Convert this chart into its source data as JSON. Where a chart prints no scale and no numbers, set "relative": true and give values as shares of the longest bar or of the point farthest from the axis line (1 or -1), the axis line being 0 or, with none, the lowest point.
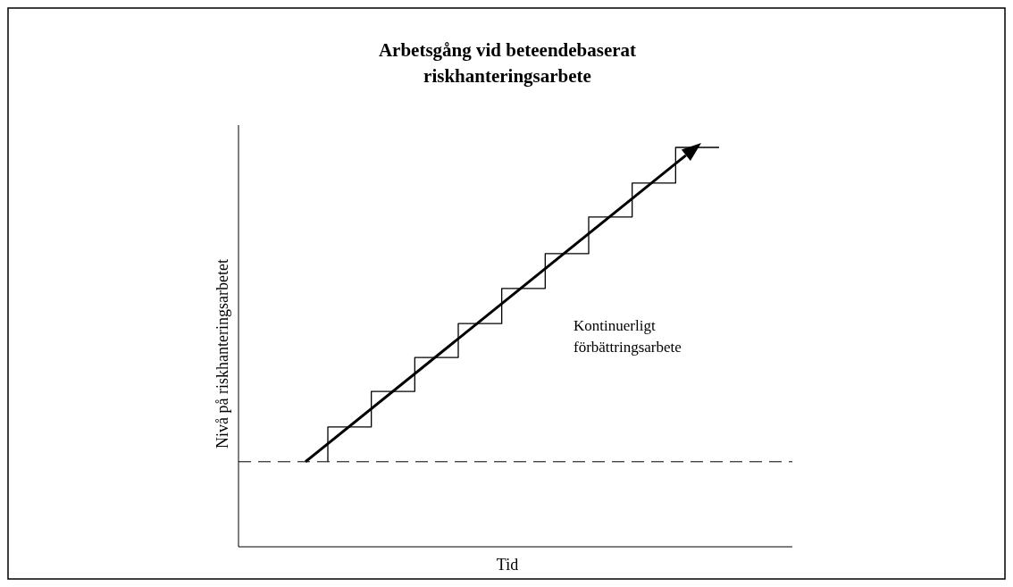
{
  "chart_data": {
    "type": "step",
    "relative": true,
    "title": "Arbetsgång vid beteendebaserat\nriskhanteringsarbete",
    "xlabel": "Tid",
    "ylabel": "Nivå på riskhanteringsarbetet",
    "categories": [
      null,
      null,
      null,
      null,
      null,
      null,
      null,
      null,
      null,
      null
    ],
    "series": [
      {
        "color": "#000000",
        "values": [
          0.213,
          0.3,
          0.389,
          0.474,
          0.559,
          0.647,
          0.734,
          0.826,
          0.911,
          1
        ]
      }
    ],
    "ref_lines": [
      {
        "axis": "y",
        "value": 0.213,
        "color": "#000000",
        "line_style": "dashed"
      }
    ],
    "annotations": [
      "Kontinuerligt förbättringsarbete"
    ]
  }
}
